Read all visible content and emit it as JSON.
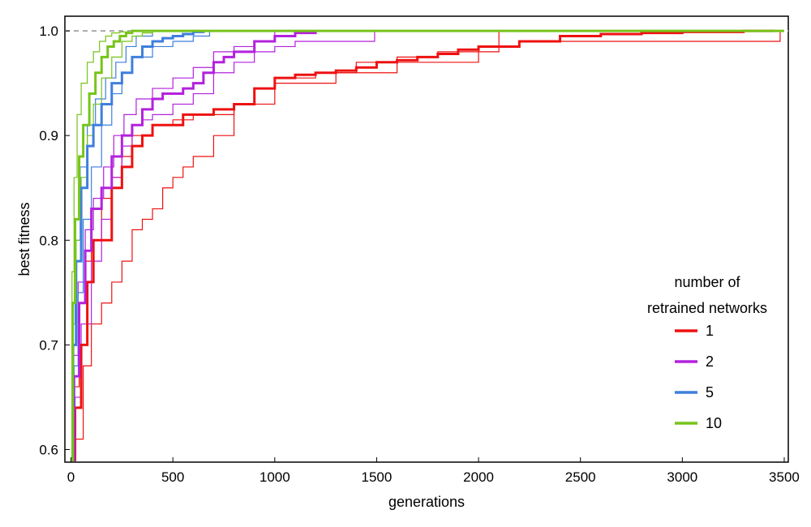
{
  "chart_data": {
    "type": "line",
    "title": "",
    "xlabel": "generations",
    "ylabel": "best fitness",
    "xlim": [
      -30,
      3520
    ],
    "ylim": [
      0.588,
      1.014
    ],
    "xticks": [
      0,
      500,
      1000,
      1500,
      2000,
      2500,
      3000,
      3500
    ],
    "xtick_labels": [
      "0",
      "500",
      "1000",
      "1500",
      "2000",
      "2500",
      "3000",
      "3500"
    ],
    "yticks": [
      0.6,
      0.7,
      0.8,
      0.9,
      1.0
    ],
    "ytick_labels": [
      "0.6",
      "0.7",
      "0.8",
      "0.9",
      "1.0"
    ],
    "reference_line": {
      "y": 1.0,
      "style": "dashed",
      "color": "#aaaaaa"
    },
    "legend": {
      "title_lines": [
        "number of",
        "retrained networks"
      ],
      "position": "right",
      "entries": [
        {
          "label": "1",
          "color": "#ee1111"
        },
        {
          "label": "2",
          "color": "#b322dd"
        },
        {
          "label": "5",
          "color": "#3f7fdd"
        },
        {
          "label": "10",
          "color": "#77c41a"
        }
      ]
    },
    "series": [
      {
        "name": "1",
        "color": "#ee1111",
        "style": "mean",
        "x": [
          0,
          20,
          50,
          80,
          110,
          150,
          200,
          250,
          300,
          350,
          400,
          450,
          500,
          550,
          600,
          700,
          800,
          900,
          1000,
          1100,
          1200,
          1300,
          1400,
          1500,
          1600,
          1700,
          1800,
          1900,
          2000,
          2200,
          2400,
          2600,
          2800,
          3000,
          3200,
          3300,
          3450
        ],
        "y": [
          0.59,
          0.64,
          0.7,
          0.76,
          0.8,
          0.8,
          0.85,
          0.87,
          0.89,
          0.9,
          0.91,
          0.91,
          0.91,
          0.92,
          0.92,
          0.925,
          0.93,
          0.945,
          0.955,
          0.958,
          0.96,
          0.962,
          0.965,
          0.97,
          0.972,
          0.975,
          0.978,
          0.982,
          0.985,
          0.99,
          0.995,
          0.997,
          0.998,
          0.999,
          0.999,
          1.0,
          1.0
        ]
      },
      {
        "name": "1",
        "color": "#ee1111",
        "style": "thin",
        "x": [
          0,
          20,
          60,
          100,
          150,
          200,
          250,
          300,
          350,
          400,
          450,
          500,
          550,
          600,
          700,
          800,
          900,
          1000,
          1200,
          1400,
          1600,
          1800,
          2000,
          2200,
          2500,
          2800,
          3000,
          3200,
          3450,
          3480
        ],
        "y": [
          0.59,
          0.61,
          0.68,
          0.72,
          0.74,
          0.76,
          0.78,
          0.81,
          0.82,
          0.83,
          0.85,
          0.86,
          0.87,
          0.88,
          0.9,
          0.93,
          0.945,
          0.955,
          0.96,
          0.97,
          0.975,
          0.98,
          0.985,
          0.99,
          0.99,
          0.99,
          0.99,
          0.99,
          0.99,
          1.0
        ]
      },
      {
        "name": "1",
        "color": "#ee1111",
        "style": "thin",
        "x": [
          0,
          15,
          40,
          70,
          100,
          150,
          200,
          250,
          300,
          400,
          500,
          600,
          800,
          1000,
          1300,
          1600,
          2000,
          2100,
          2400,
          2800,
          3200,
          3450
        ],
        "y": [
          0.59,
          0.66,
          0.74,
          0.78,
          0.8,
          0.84,
          0.86,
          0.88,
          0.9,
          0.91,
          0.915,
          0.92,
          0.93,
          0.95,
          0.96,
          0.97,
          0.98,
          1.0,
          1.0,
          1.0,
          1.0,
          1.0
        ]
      },
      {
        "name": "2",
        "color": "#b322dd",
        "style": "mean",
        "x": [
          0,
          15,
          40,
          70,
          100,
          150,
          200,
          250,
          300,
          350,
          400,
          450,
          500,
          550,
          600,
          650,
          700,
          750,
          800,
          900,
          1000,
          1100,
          1200
        ],
        "y": [
          0.59,
          0.67,
          0.74,
          0.79,
          0.83,
          0.85,
          0.88,
          0.9,
          0.91,
          0.925,
          0.935,
          0.94,
          0.94,
          0.945,
          0.95,
          0.96,
          0.97,
          0.975,
          0.98,
          0.99,
          0.995,
          0.998,
          1.0
        ]
      },
      {
        "name": "2",
        "color": "#b322dd",
        "style": "thin",
        "x": [
          0,
          20,
          50,
          100,
          150,
          200,
          250,
          300,
          350,
          400,
          500,
          600,
          700,
          800,
          900,
          1000,
          1100,
          1200,
          1300,
          1490
        ],
        "y": [
          0.59,
          0.65,
          0.72,
          0.78,
          0.82,
          0.86,
          0.89,
          0.91,
          0.915,
          0.92,
          0.93,
          0.94,
          0.96,
          0.97,
          0.98,
          0.985,
          0.99,
          0.99,
          0.99,
          1.0
        ]
      },
      {
        "name": "2",
        "color": "#b322dd",
        "style": "thin",
        "x": [
          0,
          12,
          35,
          70,
          110,
          160,
          210,
          260,
          320,
          400,
          500,
          600,
          700,
          800,
          900,
          1000,
          1200
        ],
        "y": [
          0.59,
          0.69,
          0.76,
          0.81,
          0.84,
          0.87,
          0.9,
          0.92,
          0.935,
          0.945,
          0.955,
          0.965,
          0.98,
          0.985,
          0.99,
          1.0,
          1.0
        ]
      },
      {
        "name": "5",
        "color": "#3f7fdd",
        "style": "mean",
        "x": [
          0,
          10,
          25,
          50,
          80,
          110,
          150,
          200,
          250,
          300,
          350,
          400,
          450,
          500,
          550,
          600,
          650
        ],
        "y": [
          0.59,
          0.7,
          0.78,
          0.85,
          0.89,
          0.91,
          0.93,
          0.95,
          0.96,
          0.975,
          0.985,
          0.99,
          0.993,
          0.995,
          0.997,
          0.999,
          1.0
        ]
      },
      {
        "name": "5",
        "color": "#3f7fdd",
        "style": "thin",
        "x": [
          0,
          15,
          35,
          60,
          100,
          150,
          200,
          250,
          300,
          400,
          500,
          600,
          680
        ],
        "y": [
          0.59,
          0.68,
          0.75,
          0.82,
          0.87,
          0.91,
          0.94,
          0.96,
          0.975,
          0.985,
          0.99,
          0.995,
          1.0
        ]
      },
      {
        "name": "5",
        "color": "#3f7fdd",
        "style": "thin",
        "x": [
          0,
          8,
          20,
          45,
          80,
          120,
          170,
          220,
          270,
          320,
          400
        ],
        "y": [
          0.59,
          0.72,
          0.8,
          0.87,
          0.91,
          0.935,
          0.955,
          0.97,
          0.985,
          0.995,
          1.0
        ]
      },
      {
        "name": "10",
        "color": "#77c41a",
        "style": "mean",
        "x": [
          0,
          8,
          20,
          40,
          60,
          90,
          120,
          150,
          180,
          210,
          240,
          270,
          300,
          3500
        ],
        "y": [
          0.59,
          0.74,
          0.82,
          0.88,
          0.91,
          0.94,
          0.96,
          0.975,
          0.985,
          0.99,
          0.995,
          0.998,
          1.0,
          1.0
        ]
      },
      {
        "name": "10",
        "color": "#77c41a",
        "style": "thin",
        "x": [
          0,
          10,
          25,
          50,
          80,
          110,
          150,
          200,
          250,
          300,
          350,
          400
        ],
        "y": [
          0.59,
          0.72,
          0.8,
          0.86,
          0.9,
          0.93,
          0.955,
          0.975,
          0.99,
          0.995,
          0.998,
          1.0
        ]
      },
      {
        "name": "10",
        "color": "#77c41a",
        "style": "thin",
        "x": [
          0,
          5,
          15,
          30,
          50,
          80,
          110,
          140,
          170,
          200,
          240,
          280
        ],
        "y": [
          0.59,
          0.77,
          0.86,
          0.92,
          0.95,
          0.97,
          0.98,
          0.99,
          0.995,
          0.998,
          0.999,
          1.0
        ]
      }
    ]
  }
}
